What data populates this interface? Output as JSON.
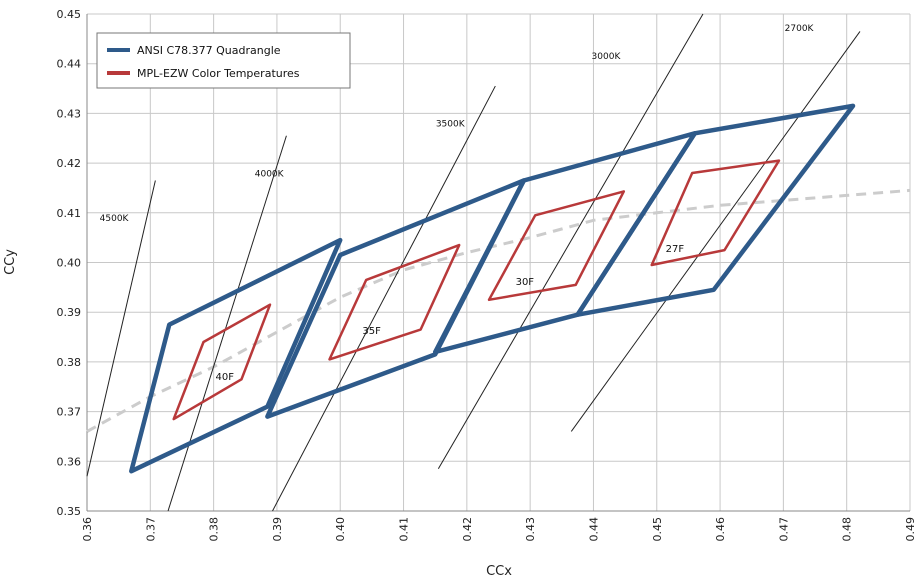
{
  "chart_data": {
    "type": "line",
    "title": "",
    "xlabel": "CCx",
    "ylabel": "CCy",
    "xlim": [
      0.36,
      0.49
    ],
    "ylim": [
      0.35,
      0.45
    ],
    "grid": true,
    "x_ticks": [
      "0.36",
      "0.37",
      "0.38",
      "0.39",
      "0.40",
      "0.41",
      "0.42",
      "0.43",
      "0.44",
      "0.45",
      "0.46",
      "0.47",
      "0.48",
      "0.49"
    ],
    "y_ticks": [
      "0.35",
      "0.36",
      "0.37",
      "0.38",
      "0.39",
      "0.40",
      "0.41",
      "0.42",
      "0.43",
      "0.44",
      "0.45"
    ],
    "legend": {
      "position": "top-left",
      "entries": [
        {
          "name": "ANSI C78.377 Quadrangle",
          "color": "#2e5a8a"
        },
        {
          "name": "MPL-EZW Color Temperatures",
          "color": "#b8393a"
        }
      ]
    },
    "series": [
      {
        "name": "ANSI C78.377 Quadrangle",
        "color": "#2e5a8a",
        "polygons": [
          [
            [
              0.367,
              0.358
            ],
            [
              0.373,
              0.3875
            ],
            [
              0.4,
              0.4045
            ],
            [
              0.3885,
              0.371
            ]
          ],
          [
            [
              0.3885,
              0.369
            ],
            [
              0.4,
              0.4015
            ],
            [
              0.429,
              0.4165
            ],
            [
              0.415,
              0.3815
            ]
          ],
          [
            [
              0.415,
              0.382
            ],
            [
              0.429,
              0.4165
            ],
            [
              0.456,
              0.426
            ],
            [
              0.4375,
              0.3895
            ]
          ],
          [
            [
              0.4375,
              0.3895
            ],
            [
              0.456,
              0.426
            ],
            [
              0.481,
              0.4315
            ],
            [
              0.459,
              0.3945
            ]
          ]
        ]
      },
      {
        "name": "MPL-EZW Color Temperatures",
        "color": "#b8393a",
        "polygons": [
          [
            [
              0.3737,
              0.3685
            ],
            [
              0.3784,
              0.384
            ],
            [
              0.3889,
              0.3915
            ],
            [
              0.3844,
              0.3765
            ]
          ],
          [
            [
              0.3983,
              0.3805
            ],
            [
              0.4041,
              0.3965
            ],
            [
              0.4188,
              0.4035
            ],
            [
              0.4127,
              0.3865
            ]
          ],
          [
            [
              0.4235,
              0.3925
            ],
            [
              0.4308,
              0.4095
            ],
            [
              0.4448,
              0.4143
            ],
            [
              0.4372,
              0.3955
            ]
          ],
          [
            [
              0.4492,
              0.3995
            ],
            [
              0.4556,
              0.418
            ],
            [
              0.4693,
              0.4205
            ],
            [
              0.4607,
              0.4025
            ]
          ]
        ]
      }
    ],
    "blackbody_locus": {
      "style": "dashed",
      "color": "#cccccc",
      "points": [
        [
          0.36,
          0.366
        ],
        [
          0.37,
          0.373
        ],
        [
          0.38,
          0.379
        ],
        [
          0.39,
          0.386
        ],
        [
          0.4,
          0.393
        ],
        [
          0.41,
          0.3985
        ],
        [
          0.42,
          0.402
        ],
        [
          0.43,
          0.405
        ],
        [
          0.44,
          0.4085
        ],
        [
          0.45,
          0.41
        ],
        [
          0.46,
          0.4115
        ],
        [
          0.47,
          0.4125
        ],
        [
          0.48,
          0.4135
        ],
        [
          0.49,
          0.4145
        ]
      ]
    },
    "isotemperature_lines": [
      {
        "label": "4500K",
        "from": [
          0.36,
          0.357
        ],
        "to": [
          0.3708,
          0.4165
        ]
      },
      {
        "label": "4000K",
        "from": [
          0.3728,
          0.35
        ],
        "to": [
          0.3915,
          0.4255
        ]
      },
      {
        "label": "3500K",
        "from": [
          0.3893,
          0.35
        ],
        "to": [
          0.4245,
          0.4355
        ]
      },
      {
        "label": "3000K",
        "from": [
          0.4155,
          0.3585
        ],
        "to": [
          0.4573,
          0.45
        ]
      },
      {
        "label": "2700K",
        "from": [
          0.4365,
          0.366
        ],
        "to": [
          0.4821,
          0.4465
        ]
      }
    ],
    "annotations": [
      {
        "text": "4500K",
        "x": 0.362,
        "y": 0.4083
      },
      {
        "text": "4000K",
        "x": 0.3865,
        "y": 0.4173
      },
      {
        "text": "3500K",
        "x": 0.4151,
        "y": 0.4274
      },
      {
        "text": "3000K",
        "x": 0.4397,
        "y": 0.4409
      },
      {
        "text": "2700K",
        "x": 0.4702,
        "y": 0.4466
      },
      {
        "text": "40F",
        "x": 0.3803,
        "y": 0.3764
      },
      {
        "text": "35F",
        "x": 0.4035,
        "y": 0.3856
      },
      {
        "text": "30F",
        "x": 0.4277,
        "y": 0.3955
      },
      {
        "text": "27F",
        "x": 0.4514,
        "y": 0.4021
      }
    ]
  }
}
